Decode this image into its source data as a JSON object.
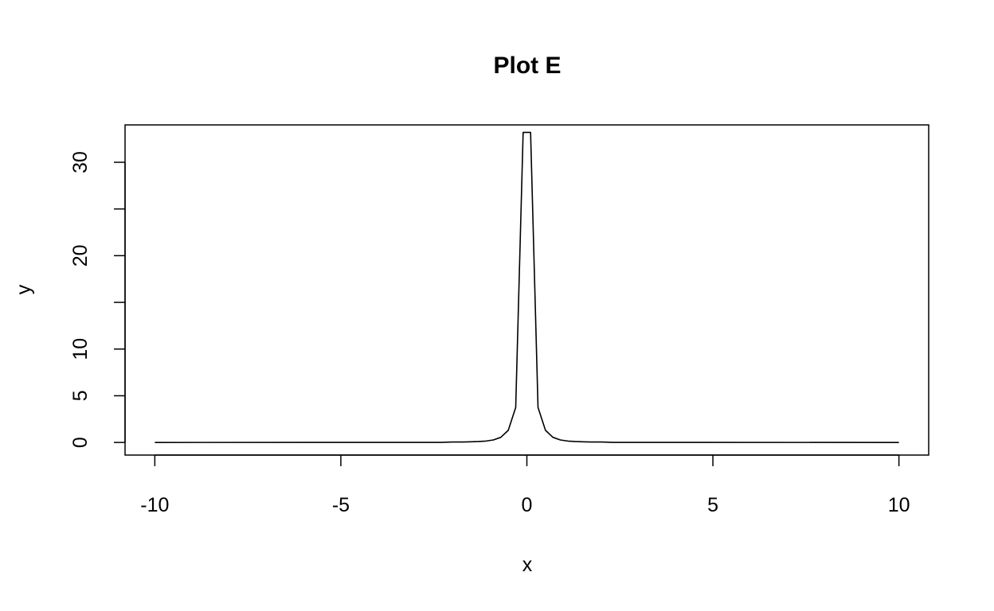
{
  "chart_data": {
    "type": "line",
    "title": "Plot E",
    "xlabel": "x",
    "ylabel": "y",
    "xlim": [
      -10.8,
      10.8
    ],
    "ylim": [
      -1.35,
      34.0
    ],
    "x_ticks": [
      -10,
      -5,
      0,
      5,
      10
    ],
    "y_ticks": [
      0,
      5,
      10,
      15,
      20,
      25,
      30
    ],
    "x_tick_labels": [
      "-10",
      "-5",
      "0",
      "5",
      "10"
    ],
    "y_tick_labels": [
      "0",
      "5",
      "10",
      "",
      "20",
      "",
      "30"
    ],
    "grid": false,
    "line_color": "#000000",
    "series": [
      {
        "x": [
          -10.0,
          -2.3,
          -2.0,
          -1.7,
          -1.5,
          -1.3,
          -1.1,
          -0.9,
          -0.7,
          -0.5,
          -0.3,
          -0.1,
          0.1,
          0.3,
          0.5,
          0.7,
          0.9,
          1.1,
          1.3,
          1.5,
          1.7,
          2.0,
          2.3,
          10.0
        ],
        "y": [
          0.0,
          0.01,
          0.05,
          0.05,
          0.07,
          0.1,
          0.15,
          0.27,
          0.55,
          1.3,
          3.75,
          33.2,
          33.2,
          3.75,
          1.3,
          0.55,
          0.27,
          0.15,
          0.1,
          0.07,
          0.05,
          0.05,
          0.01,
          0.0
        ]
      }
    ]
  }
}
